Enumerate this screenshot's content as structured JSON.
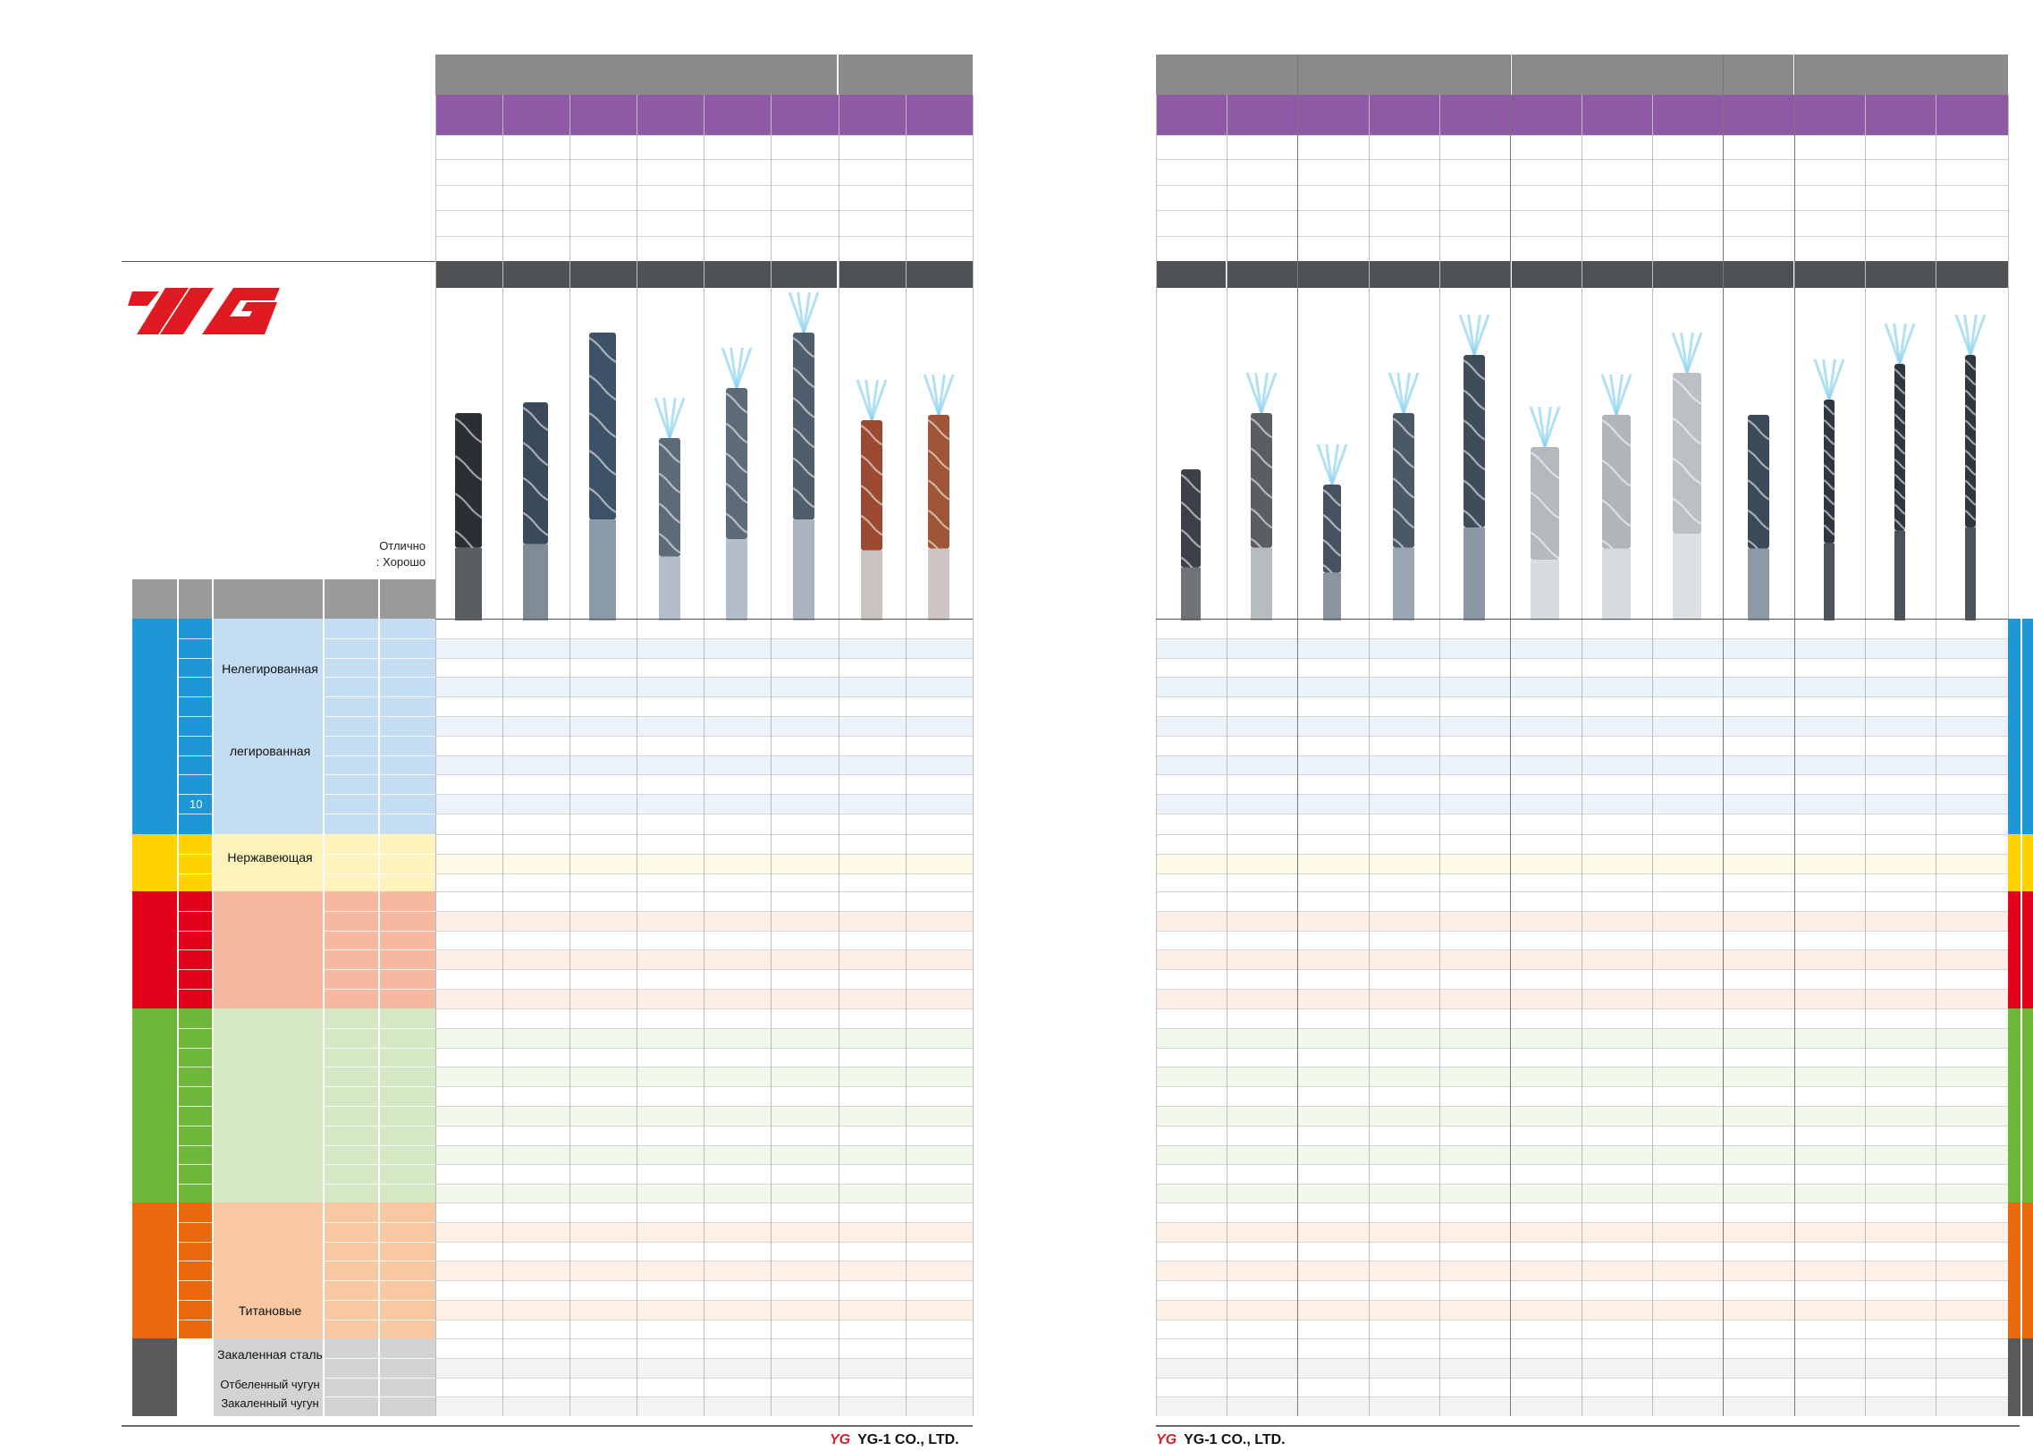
{
  "brand": {
    "logo_text": "YG",
    "footer_company": "YG-1 CO., LTD."
  },
  "legend": {
    "excellent": "Отлично",
    "good": ": Хорошо"
  },
  "materials": {
    "non_alloy": "Нелегированная",
    "alloy": "легированная",
    "group_number": "10",
    "stainless": "Нержавеющая",
    "titanium": "Титановые",
    "hardened_steel": "Закаленная сталь",
    "chilled_cast_iron": "Отбеленный чугун",
    "hardened_cast_iron": "Закаленный чугун"
  },
  "colors": {
    "steel": "#1f97d6",
    "steel_light": "#c4ddf2",
    "stainless": "#ffd200",
    "stainless_light": "#fff3bd",
    "cast_iron": "#e2001a",
    "cast_iron_light": "#f6b89e",
    "nonferrous": "#6db83a",
    "nonferrous_light": "#d4e8c3",
    "heat_resistant": "#e9690c",
    "heat_resistant_light": "#f7c8a2",
    "hard": "#5a5a5a",
    "hard_light": "#d3d3d3",
    "header_grey": "#8a8a8a",
    "header_purple": "#8f5aa3",
    "dark_band": "#4f5254"
  },
  "products": {
    "left_count": 8,
    "right_count": 12
  }
}
